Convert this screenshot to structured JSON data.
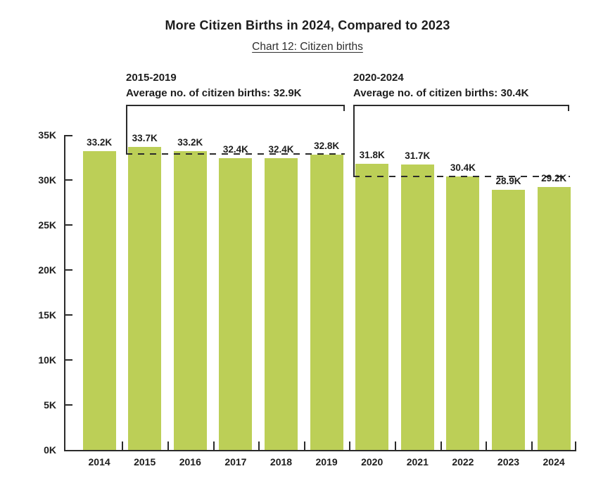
{
  "header": {
    "title": "More Citizen Births in 2024, Compared to 2023",
    "subtitle": "Chart 12: Citizen births"
  },
  "annotations": [
    {
      "period": "2015-2019",
      "text": "Average no. of citizen births: 32.9K"
    },
    {
      "period": "2020-2024",
      "text": "Average no. of citizen births: 30.4K"
    }
  ],
  "chart_data": {
    "type": "bar",
    "title": "More Citizen Births in 2024, Compared to 2023",
    "subtitle": "Chart 12: Citizen births",
    "categories": [
      "2014",
      "2015",
      "2016",
      "2017",
      "2018",
      "2019",
      "2020",
      "2021",
      "2022",
      "2023",
      "2024"
    ],
    "values": [
      33.2,
      33.7,
      33.2,
      32.4,
      32.4,
      32.8,
      31.8,
      31.7,
      30.4,
      28.9,
      29.2
    ],
    "value_labels": [
      "33.2K",
      "33.7K",
      "33.2K",
      "32.4K",
      "32.4K",
      "32.8K",
      "31.8K",
      "31.7K",
      "30.4K",
      "28.9K",
      "29.2K"
    ],
    "unit": "K",
    "ylim": [
      0,
      35
    ],
    "ytick_labels": [
      "35K",
      "30K",
      "25K",
      "20K",
      "15K",
      "10K",
      "5K",
      "0K"
    ],
    "grid": false,
    "legend": "none",
    "reference_lines": [
      {
        "group": "2015-2019",
        "value": 32.9,
        "style": "dashed",
        "label": "Average no. of citizen births: 32.9K"
      },
      {
        "group": "2020-2024",
        "value": 30.4,
        "style": "dashed",
        "label": "Average no. of citizen births: 30.4K"
      }
    ],
    "colors": {
      "bar": "#bccf57",
      "axis": "#2b2b2b",
      "text": "#1d1d1d",
      "background": "#ffffff"
    }
  }
}
